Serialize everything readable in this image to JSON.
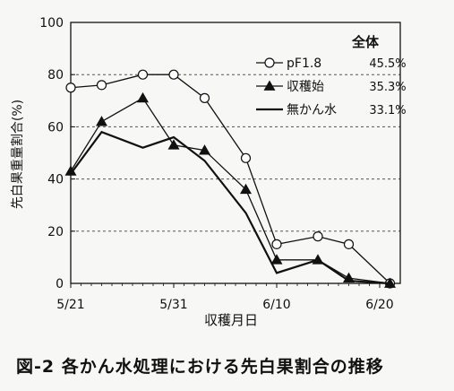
{
  "caption": "図-2 各かん水処理における先白果割合の推移",
  "chart_data": {
    "type": "line",
    "xlabel": "収穫月日",
    "ylabel": "先白果重量割合(%)",
    "ylim": [
      0,
      100
    ],
    "yticks": [
      0,
      20,
      40,
      60,
      80,
      100
    ],
    "xlim": [
      0,
      32
    ],
    "xticks": [
      {
        "x": 0,
        "label": "5/21"
      },
      {
        "x": 10,
        "label": "5/31"
      },
      {
        "x": 20,
        "label": "6/10"
      },
      {
        "x": 30,
        "label": "6/20"
      }
    ],
    "grid": "horizontal-dashed",
    "legend": {
      "placement": "top-right",
      "header": "全体"
    },
    "series": [
      {
        "name": "pF1.8",
        "marker": "open-circle",
        "total": "45.5%",
        "x": [
          0,
          3,
          7,
          10,
          13,
          17,
          20,
          24,
          27,
          31
        ],
        "y": [
          75,
          76,
          80,
          80,
          71,
          48,
          15,
          18,
          15,
          0
        ]
      },
      {
        "name": "収穫始",
        "marker": "filled-triangle",
        "total": "35.3%",
        "x": [
          0,
          3,
          7,
          10,
          13,
          17,
          20,
          24,
          27,
          31
        ],
        "y": [
          43,
          62,
          71,
          53,
          51,
          36,
          9,
          9,
          2,
          0
        ]
      },
      {
        "name": "無かん水",
        "marker": "none",
        "total": "33.1%",
        "x": [
          0,
          3,
          7,
          10,
          13,
          17,
          20,
          24,
          27,
          31
        ],
        "y": [
          42,
          58,
          52,
          56,
          47,
          27,
          4,
          9,
          1,
          0
        ]
      }
    ]
  }
}
